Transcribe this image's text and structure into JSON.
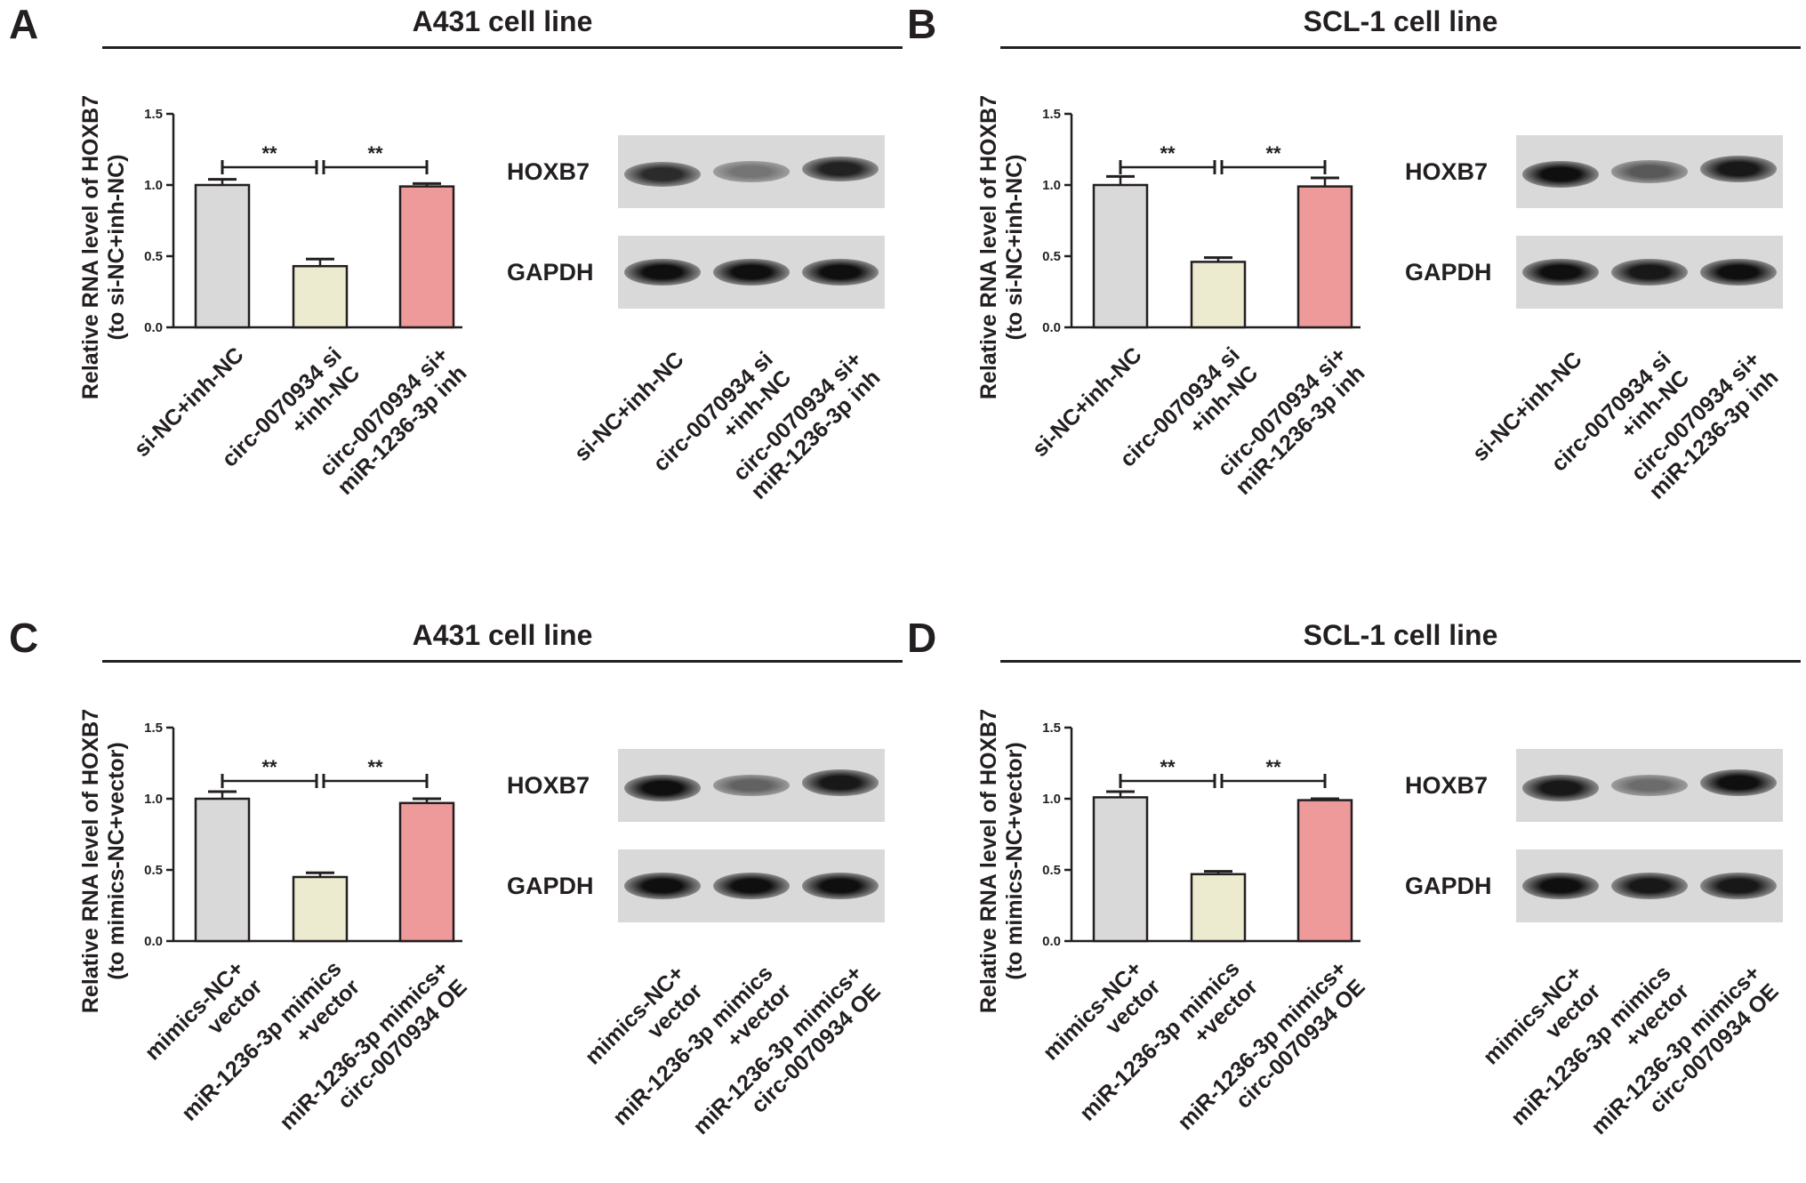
{
  "panels": [
    {
      "letter": "A",
      "title": "A431 cell line",
      "blot_labels": [
        "HOXB7",
        "GAPDH"
      ],
      "lanes": [
        [
          "si-NC+inh-NC"
        ],
        [
          "circ-0070934 si",
          "+inh-NC"
        ],
        [
          "circ-0070934 si+",
          "miR-1236-3p inh"
        ]
      ],
      "hoxb7_intensity": [
        0.85,
        0.45,
        0.9
      ],
      "gapdh_intensity": [
        1.0,
        1.0,
        1.0
      ]
    },
    {
      "letter": "B",
      "title": "SCL-1 cell line",
      "blot_labels": [
        "HOXB7",
        "GAPDH"
      ],
      "lanes": [
        [
          "si-NC+inh-NC"
        ],
        [
          "circ-0070934 si",
          "+inh-NC"
        ],
        [
          "circ-0070934 si+",
          "miR-1236-3p inh"
        ]
      ],
      "hoxb7_intensity": [
        1.0,
        0.6,
        0.95
      ],
      "gapdh_intensity": [
        1.0,
        0.95,
        1.0
      ]
    },
    {
      "letter": "C",
      "title": "A431 cell line",
      "blot_labels": [
        "HOXB7",
        "GAPDH"
      ],
      "lanes": [
        [
          "mimics-NC+",
          "vector"
        ],
        [
          "miR-1236-3p mimics",
          "+vector"
        ],
        [
          "miR-1236-3p mimics+",
          "circ-0070934 OE"
        ]
      ],
      "hoxb7_intensity": [
        1.0,
        0.55,
        0.95
      ],
      "gapdh_intensity": [
        1.0,
        1.0,
        1.0
      ]
    },
    {
      "letter": "D",
      "title": "SCL-1 cell line",
      "blot_labels": [
        "HOXB7",
        "GAPDH"
      ],
      "lanes": [
        [
          "mimics-NC+",
          "vector"
        ],
        [
          "miR-1236-3p mimics",
          "+vector"
        ],
        [
          "miR-1236-3p mimics+",
          "circ-0070934 OE"
        ]
      ],
      "hoxb7_intensity": [
        0.95,
        0.5,
        1.0
      ],
      "gapdh_intensity": [
        1.0,
        0.95,
        0.95
      ]
    }
  ],
  "chart_data": [
    {
      "type": "bar",
      "panel": "A",
      "title": "A431 cell line",
      "ylabel": [
        "Relative RNA level of HOXB7",
        "(to si-NC+inh-NC)"
      ],
      "categories": [
        [
          "si-NC+inh-NC"
        ],
        [
          "circ-0070934 si",
          "+inh-NC"
        ],
        [
          "circ-0070934 si+",
          "miR-1236-3p inh"
        ]
      ],
      "values": [
        1.0,
        0.43,
        0.99
      ],
      "errors": [
        0.04,
        0.05,
        0.02
      ],
      "colors": [
        "#d9d9d9",
        "#ecebcf",
        "#ee9a9a"
      ],
      "ylim": [
        0,
        1.5
      ],
      "yticks": [
        "0.0",
        "0.5",
        "1.0",
        "1.5"
      ],
      "significance": [
        {
          "from": 0,
          "to": 1,
          "label": "**"
        },
        {
          "from": 1,
          "to": 2,
          "label": "**"
        }
      ]
    },
    {
      "type": "bar",
      "panel": "B",
      "title": "SCL-1 cell line",
      "ylabel": [
        "Relative RNA level of HOXB7",
        "(to si-NC+inh-NC)"
      ],
      "categories": [
        [
          "si-NC+inh-NC"
        ],
        [
          "circ-0070934 si",
          "+inh-NC"
        ],
        [
          "circ-0070934 si+",
          "miR-1236-3p inh"
        ]
      ],
      "values": [
        1.0,
        0.46,
        0.99
      ],
      "errors": [
        0.06,
        0.03,
        0.06
      ],
      "colors": [
        "#d9d9d9",
        "#ecebcf",
        "#ee9a9a"
      ],
      "ylim": [
        0,
        1.5
      ],
      "yticks": [
        "0.0",
        "0.5",
        "1.0",
        "1.5"
      ],
      "significance": [
        {
          "from": 0,
          "to": 1,
          "label": "**"
        },
        {
          "from": 1,
          "to": 2,
          "label": "**"
        }
      ]
    },
    {
      "type": "bar",
      "panel": "C",
      "title": "A431 cell line",
      "ylabel": [
        "Relative RNA level of HOXB7",
        "(to mimics-NC+vector)"
      ],
      "categories": [
        [
          "mimics-NC+",
          "vector"
        ],
        [
          "miR-1236-3p mimics",
          "+vector"
        ],
        [
          "miR-1236-3p mimics+",
          "circ-0070934 OE"
        ]
      ],
      "values": [
        1.0,
        0.45,
        0.97
      ],
      "errors": [
        0.05,
        0.03,
        0.03
      ],
      "colors": [
        "#d9d9d9",
        "#ecebcf",
        "#ee9a9a"
      ],
      "ylim": [
        0,
        1.5
      ],
      "yticks": [
        "0.0",
        "0.5",
        "1.0",
        "1.5"
      ],
      "significance": [
        {
          "from": 0,
          "to": 1,
          "label": "**"
        },
        {
          "from": 1,
          "to": 2,
          "label": "**"
        }
      ]
    },
    {
      "type": "bar",
      "panel": "D",
      "title": "SCL-1 cell line",
      "ylabel": [
        "Relative RNA level of HOXB7",
        "(to mimics-NC+vector)"
      ],
      "categories": [
        [
          "mimics-NC+",
          "vector"
        ],
        [
          "miR-1236-3p mimics",
          "+vector"
        ],
        [
          "miR-1236-3p mimics+",
          "circ-0070934 OE"
        ]
      ],
      "values": [
        1.01,
        0.47,
        0.99
      ],
      "errors": [
        0.04,
        0.02,
        0.01
      ],
      "colors": [
        "#d9d9d9",
        "#ecebcf",
        "#ee9a9a"
      ],
      "ylim": [
        0,
        1.5
      ],
      "yticks": [
        "0.0",
        "0.5",
        "1.0",
        "1.5"
      ],
      "significance": [
        {
          "from": 0,
          "to": 1,
          "label": "**"
        },
        {
          "from": 1,
          "to": 2,
          "label": "**"
        }
      ]
    }
  ]
}
